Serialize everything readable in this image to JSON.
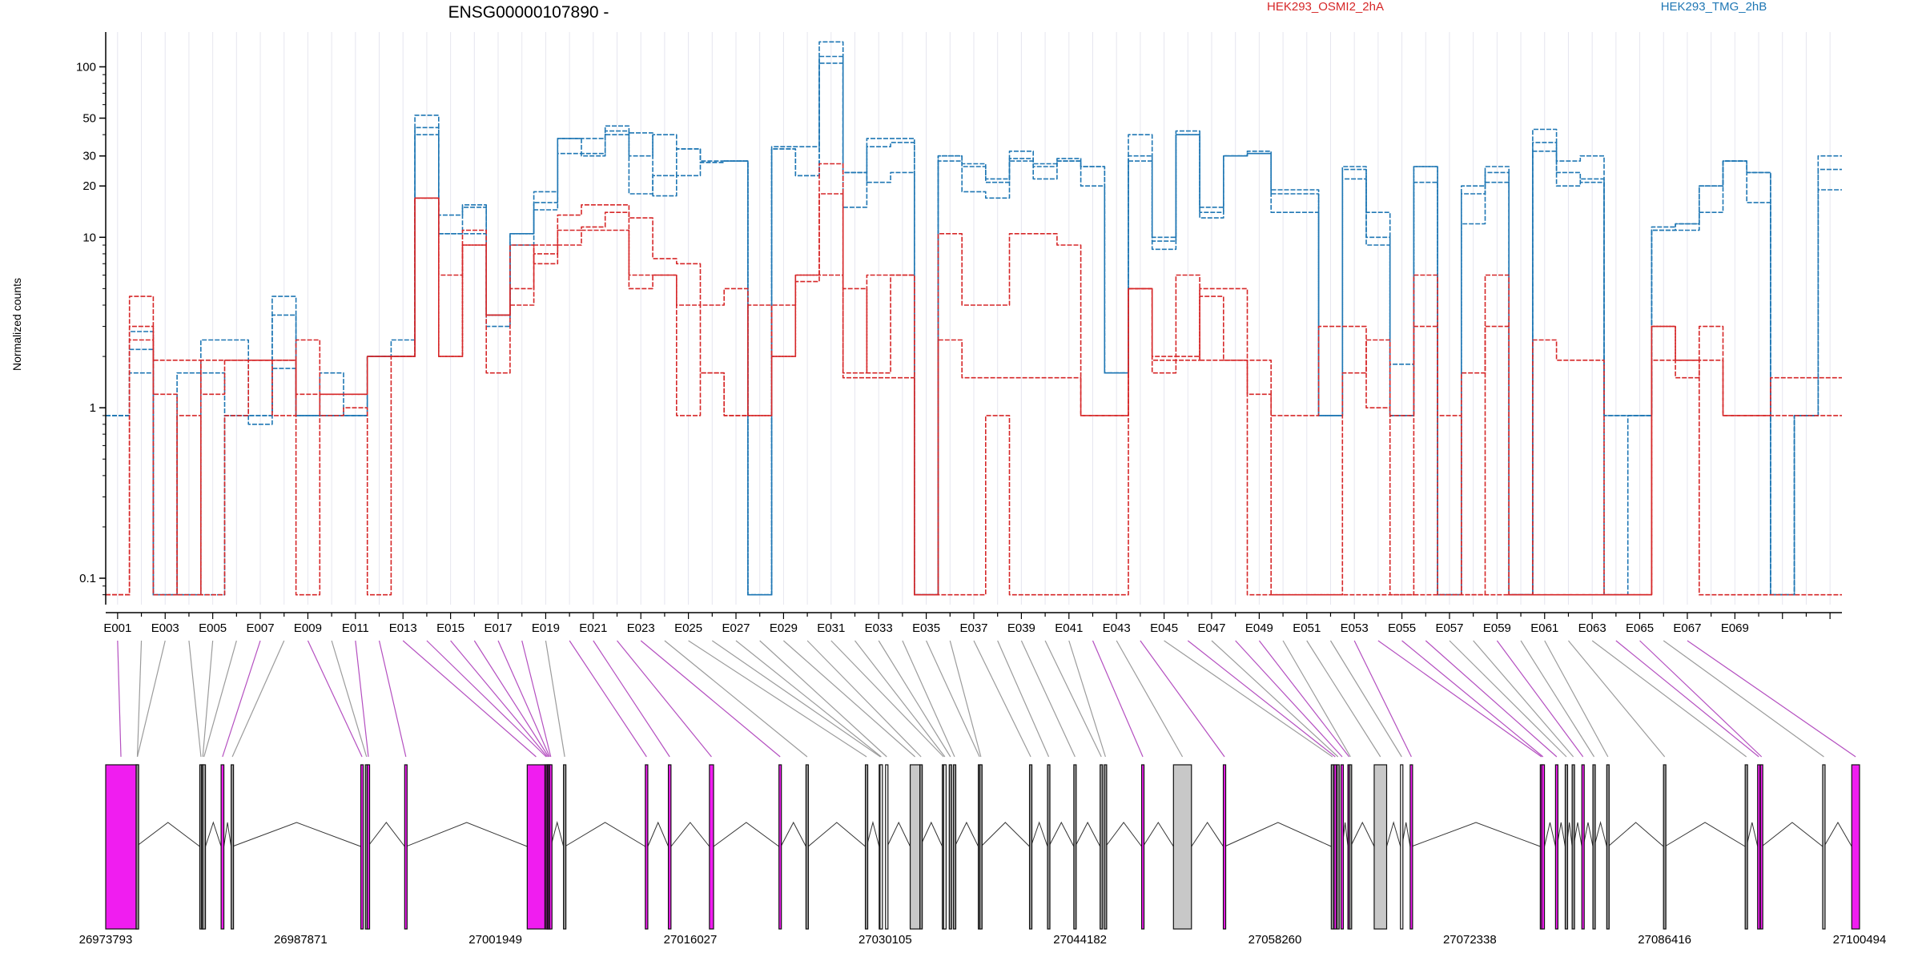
{
  "chart_data": {
    "type": "line",
    "title": "ENSG00000107890 -",
    "ylabel": "Normalized counts",
    "yscale": "log",
    "ylim": [
      0.07,
      160
    ],
    "yticks": [
      {
        "value": 0.1,
        "label": "0.1"
      },
      {
        "value": 1,
        "label": "1"
      },
      {
        "value": 10,
        "label": "10"
      },
      {
        "value": 20,
        "label": "20"
      },
      {
        "value": 30,
        "label": "30"
      },
      {
        "value": 50,
        "label": "50"
      },
      {
        "value": 100,
        "label": "100"
      }
    ],
    "legend": [
      {
        "label": "HEK293_OSMI2_2hA",
        "color": "#d62728"
      },
      {
        "label": "HEK293_TMG_2hB",
        "color": "#1f77b4"
      }
    ],
    "exon_tick_labels": [
      "E001",
      "E003",
      "E005",
      "E007",
      "E009",
      "E011",
      "E013",
      "E015",
      "E017",
      "E019",
      "E021",
      "E023",
      "E025",
      "E027",
      "E029",
      "E031",
      "E033",
      "E035",
      "E037",
      "E039",
      "E041",
      "E043",
      "E045",
      "E047",
      "E049",
      "E051",
      "E053",
      "E055",
      "E057",
      "E059",
      "E061",
      "E063",
      "E065",
      "E067",
      "E069"
    ],
    "genomic_axis": {
      "start": 26973793,
      "end": 27100494,
      "labels": [
        "26973793",
        "26987871",
        "27001949",
        "27016027",
        "27030105",
        "27044182",
        "27058260",
        "27072338",
        "27086416",
        "27100494"
      ]
    },
    "series": [
      {
        "color": "#1f77b4",
        "values": [
          0.9,
          2.2,
          0.08,
          0.08,
          0.08,
          0.9,
          0.9,
          1.7,
          0.9,
          1.6,
          0.9,
          2,
          2.5,
          44,
          10.5,
          10.5,
          3.5,
          10.5,
          14.5,
          31,
          31,
          40,
          41,
          17.5,
          23,
          27.5,
          28,
          0.08,
          33,
          23,
          105,
          24,
          21,
          24,
          0.08,
          28,
          26,
          21,
          29,
          27,
          28,
          26,
          1.6,
          30,
          9.5,
          40,
          14,
          30,
          31,
          18,
          18,
          0.9,
          22,
          10,
          0.9,
          21,
          0.08,
          12,
          21,
          0.08,
          32,
          24,
          21,
          0.9,
          0.9,
          11,
          11,
          20,
          28,
          24,
          0.08,
          0.9,
          25
        ]
      },
      {
        "color": "#1f77b4",
        "values": [
          0.9,
          1.6,
          0.08,
          1.6,
          1.6,
          0.9,
          0.9,
          3.5,
          0.9,
          0.9,
          0.9,
          2,
          2,
          52,
          13.5,
          15.5,
          3.5,
          10.5,
          18.5,
          38,
          30,
          42,
          18,
          23,
          33,
          28,
          28,
          0.08,
          34,
          34,
          140,
          15,
          38,
          38,
          0.08,
          30,
          27,
          22,
          32,
          26,
          28,
          26,
          1.6,
          40,
          10,
          42,
          15,
          30,
          32,
          19,
          19,
          0.9,
          25,
          14,
          1.8,
          26,
          0.08,
          20,
          26,
          0.08,
          43,
          28,
          30,
          0.9,
          0.9,
          11.5,
          12,
          20,
          28,
          24,
          0.08,
          0.9,
          30
        ]
      },
      {
        "color": "#1f77b4",
        "values": [
          0.9,
          2.8,
          0.08,
          0.08,
          2.5,
          2.5,
          0.8,
          4.5,
          0.9,
          0.9,
          0.9,
          2,
          2,
          40,
          10.5,
          15,
          3,
          9,
          16,
          38,
          38,
          45,
          30,
          40,
          33,
          27.5,
          28,
          0.08,
          33,
          23,
          115,
          24,
          34,
          36,
          0.08,
          30,
          18.5,
          17,
          28,
          22,
          29,
          20,
          1.6,
          28,
          8.5,
          40,
          13,
          30,
          31,
          14,
          14,
          0.9,
          26,
          9,
          0.9,
          26,
          0.08,
          18,
          24,
          0.08,
          36,
          20,
          22,
          0.08,
          0.9,
          11,
          12,
          14,
          28,
          16,
          0.08,
          0.9,
          19
        ]
      },
      {
        "color": "#d62728",
        "values": [
          0.08,
          3,
          1.2,
          0.08,
          1.9,
          1.9,
          1.9,
          1.9,
          1.2,
          1.2,
          1.2,
          2,
          2,
          17,
          2,
          11,
          1.6,
          5,
          8,
          13.5,
          15.5,
          15.5,
          5,
          6,
          0.9,
          1.6,
          0.9,
          0.9,
          4,
          5.5,
          27,
          1.5,
          1.5,
          1.5,
          0.08,
          2.5,
          1.5,
          1.5,
          1.5,
          1.5,
          1.5,
          0.9,
          0.9,
          5,
          2,
          6,
          1.9,
          1.9,
          1.2,
          0.08,
          0.08,
          0.08,
          0.08,
          0.08,
          0.08,
          0.08,
          0.08,
          0.08,
          0.08,
          0.08,
          0.08,
          0.08,
          0.08,
          0.08,
          0.08,
          1.9,
          1.9,
          3,
          0.9,
          0.9,
          1.5,
          1.5,
          1.5
        ]
      },
      {
        "color": "#d62728",
        "values": [
          0.08,
          4.5,
          1.9,
          1.9,
          1.2,
          1.9,
          1.9,
          1.9,
          0.08,
          1.2,
          1.2,
          2,
          2,
          17,
          2,
          9,
          3.5,
          9,
          7,
          9,
          11,
          11,
          6,
          6,
          4,
          1.6,
          0.9,
          4,
          2,
          6,
          18,
          5,
          1.6,
          6,
          0.08,
          10.5,
          4,
          4,
          10.5,
          10.5,
          9,
          0.9,
          0.9,
          5,
          1.6,
          2,
          4.5,
          1.9,
          1.9,
          0.9,
          0.9,
          3,
          3,
          1,
          0.9,
          6,
          0.08,
          1.6,
          6,
          0.08,
          2.5,
          1.9,
          1.9,
          0.08,
          0.08,
          3,
          1.5,
          1.9,
          0.9,
          0.9,
          0.9,
          0.9,
          0.9
        ]
      },
      {
        "color": "#d62728",
        "values": [
          0.08,
          2.5,
          0.08,
          0.9,
          0.08,
          0.9,
          1.9,
          0.9,
          2.5,
          0.9,
          1,
          0.08,
          2,
          17,
          6,
          9,
          3.5,
          4,
          9,
          11,
          11.5,
          14,
          13,
          7.5,
          7,
          4,
          5,
          0.9,
          2,
          6,
          6,
          1.6,
          6,
          6,
          0.08,
          0.08,
          0.08,
          0.9,
          0.08,
          0.08,
          0.08,
          0.08,
          0.08,
          5,
          1.9,
          1.9,
          5,
          5,
          0.08,
          0.08,
          0.08,
          0.08,
          1.6,
          2.5,
          0.08,
          3,
          0.9,
          0.08,
          3,
          0.08,
          0.08,
          0.08,
          0.08,
          0.08,
          0.08,
          3,
          1.9,
          0.08,
          0.08,
          0.08,
          0.08,
          0.08,
          0.08
        ]
      }
    ],
    "exon_connections": [
      {
        "exon": 1,
        "start": 26973793,
        "end": 26975993,
        "color": "#f01df0",
        "alt": true
      },
      {
        "exon": 2,
        "start": 26975993,
        "end": 26975993,
        "color": "#9b9b9b",
        "alt": false
      },
      {
        "exon": 3,
        "start": 26975993,
        "end": 26975993,
        "color": "#9b9b9b",
        "alt": false
      },
      {
        "exon": 4,
        "start": 26980588,
        "end": 26980720,
        "color": "#9b9b9b",
        "alt": false
      },
      {
        "exon": 5,
        "start": 26980720,
        "end": 26980788,
        "color": "#9b9b9b",
        "alt": false
      },
      {
        "exon": 6,
        "start": 26980788,
        "end": 26981000,
        "color": "#9b9b9b",
        "alt": false
      },
      {
        "exon": 7,
        "start": 26982130,
        "end": 26982330,
        "color": "#f01df0",
        "alt": true
      },
      {
        "exon": 8,
        "start": 26982853,
        "end": 26982943,
        "color": "#9b9b9b",
        "alt": false
      },
      {
        "exon": 9,
        "start": 26992223,
        "end": 26992300,
        "color": "#f01df0",
        "alt": true
      },
      {
        "exon": 10,
        "start": 26992551,
        "end": 26992683,
        "color": "#9b9b9b",
        "alt": false
      },
      {
        "exon": 11,
        "start": 26992683,
        "end": 26992734,
        "color": "#f01df0",
        "alt": true
      },
      {
        "exon": 12,
        "start": 26995391,
        "end": 26995495,
        "color": "#f01df0",
        "alt": true
      },
      {
        "exon": 13,
        "start": 27004245,
        "end": 27005525,
        "color": "#f01df0",
        "alt": true
      },
      {
        "exon": 14,
        "start": 27005525,
        "end": 27005610,
        "color": "#f01df0",
        "alt": true
      },
      {
        "exon": 15,
        "start": 27005610,
        "end": 27005700,
        "color": "#f01df0",
        "alt": true
      },
      {
        "exon": 16,
        "start": 27005700,
        "end": 27005780,
        "color": "#f01df0",
        "alt": true
      },
      {
        "exon": 17,
        "start": 27005780,
        "end": 27005860,
        "color": "#f01df0",
        "alt": true
      },
      {
        "exon": 18,
        "start": 27005860,
        "end": 27005950,
        "color": "#f01df0",
        "alt": true
      },
      {
        "exon": 19,
        "start": 27006865,
        "end": 27006965,
        "color": "#9b9b9b",
        "alt": false
      },
      {
        "exon": 20,
        "start": 27012775,
        "end": 27012955,
        "color": "#f01df0",
        "alt": true
      },
      {
        "exon": 21,
        "start": 27014440,
        "end": 27014630,
        "color": "#f01df0",
        "alt": true
      },
      {
        "exon": 22,
        "start": 27017406,
        "end": 27017706,
        "color": "#f01df0",
        "alt": true
      },
      {
        "exon": 23,
        "start": 27022431,
        "end": 27022571,
        "color": "#f01df0",
        "alt": true
      },
      {
        "exon": 24,
        "start": 27024381,
        "end": 27024541,
        "color": "#9b9b9b",
        "alt": false
      },
      {
        "exon": 25,
        "start": 27028671,
        "end": 27028761,
        "color": "#9b9b9b",
        "alt": false
      },
      {
        "exon": 26,
        "start": 27029671,
        "end": 27029731,
        "color": "#9b9b9b",
        "alt": false
      },
      {
        "exon": 27,
        "start": 27029731,
        "end": 27029791,
        "color": "#ffffff",
        "alt": false
      },
      {
        "exon": 28,
        "start": 27030131,
        "end": 27030251,
        "color": "#ffffff",
        "alt": false
      },
      {
        "exon": 29,
        "start": 27031911,
        "end": 27032611,
        "color": "#c8c8c8",
        "alt": false
      },
      {
        "exon": 30,
        "start": 27032611,
        "end": 27032631,
        "color": "#9b9b9b",
        "alt": false
      },
      {
        "exon": 31,
        "start": 27034231,
        "end": 27034331,
        "color": "#9b9b9b",
        "alt": false
      },
      {
        "exon": 32,
        "start": 27034331,
        "end": 27034431,
        "color": "#ffffff",
        "alt": false
      },
      {
        "exon": 33,
        "start": 27034731,
        "end": 27034831,
        "color": "#9b9b9b",
        "alt": false
      },
      {
        "exon": 34,
        "start": 27035031,
        "end": 27035131,
        "color": "#9b9b9b",
        "alt": false
      },
      {
        "exon": 35,
        "start": 27036831,
        "end": 27036931,
        "color": "#9b9b9b",
        "alt": false
      },
      {
        "exon": 36,
        "start": 27036931,
        "end": 27037031,
        "color": "#9b9b9b",
        "alt": false
      },
      {
        "exon": 37,
        "start": 27040531,
        "end": 27040631,
        "color": "#9b9b9b",
        "alt": false
      },
      {
        "exon": 38,
        "start": 27041831,
        "end": 27041931,
        "color": "#9b9b9b",
        "alt": false
      },
      {
        "exon": 39,
        "start": 27043731,
        "end": 27043831,
        "color": "#9b9b9b",
        "alt": false
      },
      {
        "exon": 40,
        "start": 27045631,
        "end": 27045731,
        "color": "#9b9b9b",
        "alt": false
      },
      {
        "exon": 41,
        "start": 27045931,
        "end": 27046031,
        "color": "#9b9b9b",
        "alt": false
      },
      {
        "exon": 42,
        "start": 27048631,
        "end": 27048731,
        "color": "#f01df0",
        "alt": true
      },
      {
        "exon": 43,
        "start": 27050931,
        "end": 27052231,
        "color": "#c8c8c8",
        "alt": false
      },
      {
        "exon": 44,
        "start": 27054531,
        "end": 27054631,
        "color": "#f01df0",
        "alt": true
      },
      {
        "exon": 45,
        "start": 27062331,
        "end": 27062431,
        "color": "#9b9b9b",
        "alt": false
      },
      {
        "exon": 46,
        "start": 27062531,
        "end": 27062631,
        "color": "#f01df0",
        "alt": true
      },
      {
        "exon": 47,
        "start": 27062731,
        "end": 27062831,
        "color": "#9b9b9b",
        "alt": false
      },
      {
        "exon": 48,
        "start": 27063031,
        "end": 27063131,
        "color": "#f01df0",
        "alt": true
      },
      {
        "exon": 49,
        "start": 27063531,
        "end": 27063631,
        "color": "#f01df0",
        "alt": true
      },
      {
        "exon": 50,
        "start": 27063631,
        "end": 27063731,
        "color": "#9b9b9b",
        "alt": false
      },
      {
        "exon": 51,
        "start": 27065431,
        "end": 27066331,
        "color": "#c8c8c8",
        "alt": false
      },
      {
        "exon": 52,
        "start": 27067331,
        "end": 27067431,
        "color": "#ffffff",
        "alt": false
      },
      {
        "exon": 53,
        "start": 27068031,
        "end": 27068131,
        "color": "#f01df0",
        "alt": true
      },
      {
        "exon": 54,
        "start": 27077431,
        "end": 27077531,
        "color": "#f01df0",
        "alt": true
      },
      {
        "exon": 55,
        "start": 27077531,
        "end": 27077731,
        "color": "#f01df0",
        "alt": true
      },
      {
        "exon": 56,
        "start": 27078531,
        "end": 27078631,
        "color": "#f01df0",
        "alt": true
      },
      {
        "exon": 57,
        "start": 27079231,
        "end": 27079331,
        "color": "#9b9b9b",
        "alt": false
      },
      {
        "exon": 58,
        "start": 27079731,
        "end": 27079831,
        "color": "#9b9b9b",
        "alt": false
      },
      {
        "exon": 59,
        "start": 27080431,
        "end": 27080531,
        "color": "#f01df0",
        "alt": true
      },
      {
        "exon": 60,
        "start": 27081231,
        "end": 27081331,
        "color": "#9b9b9b",
        "alt": false
      },
      {
        "exon": 61,
        "start": 27082231,
        "end": 27082331,
        "color": "#9b9b9b",
        "alt": false
      },
      {
        "exon": 62,
        "start": 27086331,
        "end": 27086431,
        "color": "#9b9b9b",
        "alt": false
      },
      {
        "exon": 63,
        "start": 27092231,
        "end": 27092331,
        "color": "#9b9b9b",
        "alt": false
      },
      {
        "exon": 64,
        "start": 27093131,
        "end": 27093231,
        "color": "#f01df0",
        "alt": true
      },
      {
        "exon": 65,
        "start": 27093331,
        "end": 27093431,
        "color": "#f01df0",
        "alt": true
      },
      {
        "exon": 66,
        "start": 27097831,
        "end": 27097931,
        "color": "#c8c8c8",
        "alt": false
      },
      {
        "exon": 67,
        "start": 27099931,
        "end": 27100494,
        "color": "#f01df0",
        "alt": true
      }
    ],
    "grid": true
  }
}
